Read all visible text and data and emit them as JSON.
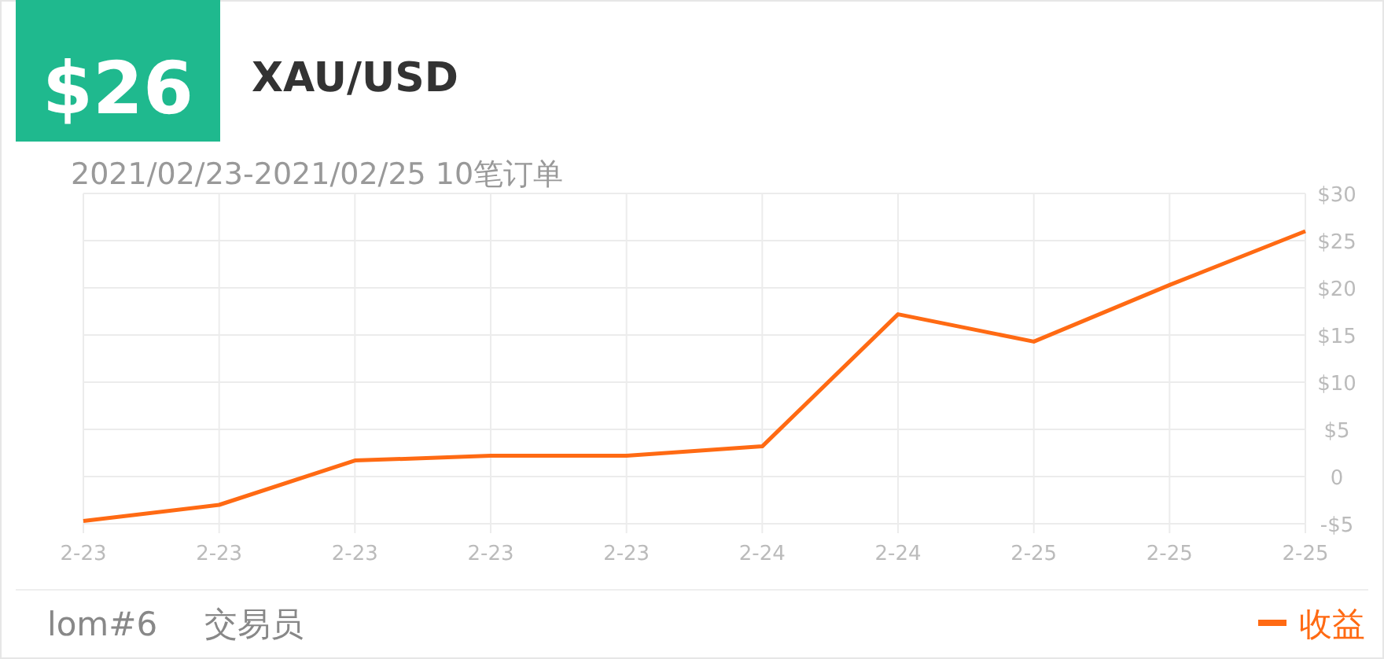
{
  "chart_data": {
    "type": "line",
    "title": "XAU/USD",
    "subtitle": "2021/02/23-2021/02/25 10笔订单",
    "annotations": [
      "$26",
      "lom#6",
      "交易员"
    ],
    "categories": [
      "2-23",
      "2-23",
      "2-23",
      "2-23",
      "2-23",
      "2-24",
      "2-24",
      "2-25",
      "2-25",
      "2-25"
    ],
    "series": [
      {
        "name": "收益",
        "color": "#ff6a13",
        "values": [
          -4.7,
          -3,
          1.7,
          2.2,
          2.2,
          3.2,
          17.2,
          14.3,
          20.3,
          26
        ]
      }
    ],
    "ylim": [
      -5,
      30
    ],
    "yticks": [
      {
        "value": -5,
        "label": "-$5"
      },
      0,
      {
        "value": 5,
        "label": "$5"
      },
      {
        "value": 10,
        "label": "$10"
      },
      {
        "value": 15,
        "label": "$15"
      },
      {
        "value": 20,
        "label": "$20"
      },
      {
        "value": 25,
        "label": "$25"
      },
      {
        "value": 30,
        "label": "$30"
      }
    ],
    "grid": true,
    "legend": "bottom right",
    "marker": "none",
    "line_style": "solid"
  }
}
